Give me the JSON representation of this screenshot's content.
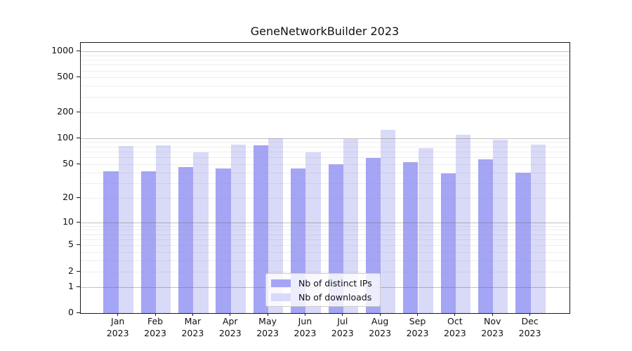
{
  "figure": {
    "title": "GeneNetworkBuilder 2023"
  },
  "chart_data": {
    "type": "bar",
    "title": "GeneNetworkBuilder 2023",
    "categories": [
      "Jan 2023",
      "Feb 2023",
      "Mar 2023",
      "Apr 2023",
      "May 2023",
      "Jun 2023",
      "Jul 2023",
      "Aug 2023",
      "Sep 2023",
      "Oct 2023",
      "Nov 2023",
      "Dec 2023"
    ],
    "series": [
      {
        "name": "Nb of distinct IPs",
        "color": "#a5a5f5",
        "values": [
          41,
          41,
          46,
          44,
          82,
          44,
          50,
          59,
          53,
          39,
          57,
          40
        ]
      },
      {
        "name": "Nb of downloads",
        "color": "#d9d9f8",
        "values": [
          81,
          83,
          69,
          85,
          99,
          68,
          98,
          124,
          77,
          109,
          96,
          84
        ]
      }
    ],
    "xlabel": "",
    "ylabel": "",
    "yscale": "log1p",
    "ylim": [
      0,
      1250
    ],
    "yticks": [
      1000,
      500,
      200,
      100,
      50,
      20,
      10,
      5,
      2,
      1,
      0
    ],
    "grid": "horizontal major and minor gridlines",
    "legend_position": "inside lower center",
    "axis_color": "#1a1a1a",
    "major_grid_color": "#c6c6c6",
    "minor_grid_color": "#e9e9e9"
  }
}
